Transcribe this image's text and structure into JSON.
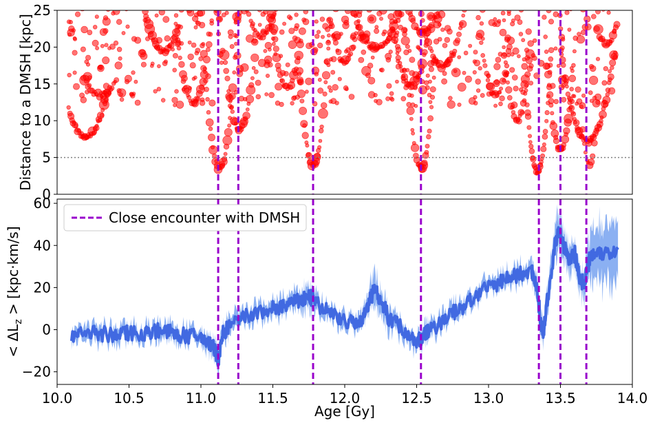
{
  "chart_data": [
    {
      "type": "scatter",
      "panel": "top",
      "ylabel": "Distance to a DMSH  [kpc]",
      "xlim": [
        10.0,
        14.0
      ],
      "ylim": [
        0,
        25
      ],
      "yticks": [
        "0",
        "5",
        "10",
        "15",
        "20",
        "25"
      ],
      "threshold_line": {
        "y": 5,
        "style": "dotted",
        "color": "#808080"
      },
      "point_color": "#ff0000",
      "point_opacity": 0.55,
      "tracks": [
        {
          "x0": 10.08,
          "x1": 10.35,
          "center": 10.2,
          "min": 7.8,
          "k": 260,
          "n": 40
        },
        {
          "x0": 10.18,
          "x1": 10.42,
          "center": 10.3,
          "min": 13.5,
          "k": 180,
          "n": 24
        },
        {
          "x0": 10.6,
          "x1": 10.85,
          "center": 10.74,
          "min": 19.5,
          "k": 320,
          "n": 30
        },
        {
          "x0": 10.82,
          "x1": 11.08,
          "center": 10.95,
          "min": 12.5,
          "k": 700,
          "n": 30
        },
        {
          "x0": 11.0,
          "x1": 11.26,
          "center": 11.13,
          "min": 3.5,
          "k": 1300,
          "n": 40
        },
        {
          "x0": 11.16,
          "x1": 11.38,
          "center": 11.27,
          "min": 8.8,
          "k": 900,
          "n": 30
        },
        {
          "x0": 11.3,
          "x1": 11.55,
          "center": 11.42,
          "min": 21.5,
          "k": 380,
          "n": 24
        },
        {
          "x0": 11.48,
          "x1": 11.72,
          "center": 11.6,
          "min": 14.5,
          "k": 700,
          "n": 28
        },
        {
          "x0": 11.66,
          "x1": 11.9,
          "center": 11.78,
          "min": 3.8,
          "k": 1500,
          "n": 40
        },
        {
          "x0": 11.9,
          "x1": 12.12,
          "center": 12.0,
          "min": 18.0,
          "k": 600,
          "n": 24
        },
        {
          "x0": 12.05,
          "x1": 12.38,
          "center": 12.22,
          "min": 19.8,
          "k": 200,
          "n": 40
        },
        {
          "x0": 12.3,
          "x1": 12.6,
          "center": 12.46,
          "min": 14.8,
          "k": 500,
          "n": 34
        },
        {
          "x0": 12.42,
          "x1": 12.66,
          "center": 12.53,
          "min": 3.5,
          "k": 1500,
          "n": 36
        },
        {
          "x0": 12.42,
          "x1": 12.7,
          "center": 12.55,
          "min": 22.0,
          "k": 280,
          "n": 26
        },
        {
          "x0": 12.5,
          "x1": 12.9,
          "center": 12.68,
          "min": 17.4,
          "k": 320,
          "n": 40
        },
        {
          "x0": 12.9,
          "x1": 13.18,
          "center": 13.05,
          "min": 13.5,
          "k": 700,
          "n": 30
        },
        {
          "x0": 13.1,
          "x1": 13.3,
          "center": 13.2,
          "min": 10.0,
          "k": 1200,
          "n": 26
        },
        {
          "x0": 13.24,
          "x1": 13.44,
          "center": 13.34,
          "min": 3.0,
          "k": 1800,
          "n": 40
        },
        {
          "x0": 13.38,
          "x1": 13.6,
          "center": 13.5,
          "min": 6.0,
          "k": 1400,
          "n": 34
        },
        {
          "x0": 13.5,
          "x1": 13.88,
          "center": 13.69,
          "min": 7.2,
          "k": 350,
          "n": 60
        },
        {
          "x0": 13.64,
          "x1": 13.74,
          "center": 13.7,
          "min": 4.0,
          "k": 2500,
          "n": 10
        },
        {
          "x0": 13.75,
          "x1": 13.9,
          "center": 13.82,
          "min": 20.5,
          "k": 500,
          "n": 16
        }
      ]
    },
    {
      "type": "line",
      "panel": "bottom",
      "xlabel": "Age  [Gy]",
      "ylabel": "< ΔL_z >  [kpc·km/s]",
      "xlim": [
        10.0,
        14.0
      ],
      "ylim": [
        -26,
        62
      ],
      "yticks": [
        "−20",
        "0",
        "20",
        "40",
        "60"
      ],
      "xticks": [
        "10.0",
        "10.5",
        "11.0",
        "11.5",
        "12.0",
        "12.5",
        "13.0",
        "13.5",
        "14.0"
      ],
      "line_color": "#4169e1",
      "band_color": "#6495ed",
      "legend": {
        "label": "Close encounter with DMSH",
        "placement": "upper-left"
      },
      "x": [
        10.1,
        10.2,
        10.3,
        10.4,
        10.5,
        10.6,
        10.7,
        10.8,
        10.9,
        11.0,
        11.05,
        11.1,
        11.12,
        11.15,
        11.2,
        11.3,
        11.4,
        11.5,
        11.6,
        11.7,
        11.75,
        11.8,
        11.9,
        12.0,
        12.1,
        12.15,
        12.2,
        12.25,
        12.3,
        12.4,
        12.5,
        12.55,
        12.6,
        12.7,
        12.8,
        12.9,
        13.0,
        13.1,
        13.2,
        13.3,
        13.33,
        13.36,
        13.38,
        13.4,
        13.45,
        13.48,
        13.52,
        13.55,
        13.6,
        13.63,
        13.66,
        13.7,
        13.75,
        13.8,
        13.9
      ],
      "y": [
        -2,
        -1,
        -2,
        -3,
        -1,
        -2,
        0,
        -2,
        -3,
        -4,
        -6,
        -10,
        -15,
        -2,
        2,
        6,
        8,
        10,
        12,
        14,
        16,
        12,
        8,
        4,
        2,
        10,
        20,
        14,
        6,
        0,
        -6,
        -2,
        0,
        6,
        10,
        16,
        20,
        24,
        26,
        28,
        22,
        4,
        -2,
        10,
        36,
        48,
        40,
        34,
        36,
        24,
        22,
        34,
        38,
        36,
        38
      ],
      "band_halfwidth": [
        3,
        3,
        3,
        3,
        3,
        3,
        3,
        3,
        3,
        3,
        3,
        3,
        3,
        3,
        3,
        3,
        3,
        3,
        3,
        4,
        4,
        4,
        3,
        3,
        3,
        4,
        6,
        5,
        4,
        3,
        3,
        3,
        3,
        3,
        3,
        3,
        3,
        3,
        3,
        3,
        4,
        4,
        4,
        5,
        6,
        8,
        6,
        5,
        5,
        5,
        5,
        8,
        10,
        12,
        14
      ],
      "encounters_x": [
        11.12,
        11.26,
        11.78,
        12.53,
        13.35,
        13.5,
        13.68
      ],
      "encounter_color": "#9900cc"
    }
  ]
}
